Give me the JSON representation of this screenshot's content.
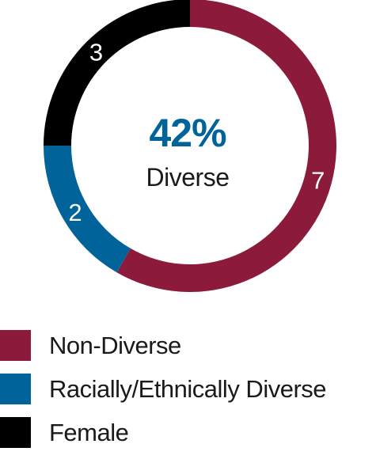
{
  "chart_data": {
    "type": "pie",
    "style": "donut",
    "center": {
      "value": "42%",
      "label": "Diverse"
    },
    "slices": [
      {
        "name": "Non-Diverse",
        "value": 7,
        "color": "#8C1A3B"
      },
      {
        "name": "Racially/Ethnically Diverse",
        "value": 2,
        "color": "#00639A"
      },
      {
        "name": "Female",
        "value": 3,
        "color": "#000000"
      }
    ],
    "start": "12 o'clock",
    "direction": "clockwise",
    "legend_position": "bottom"
  },
  "colors": {
    "center_value": "#00639A",
    "center_label": "#1a1a1a",
    "slice_label": "#ffffff"
  }
}
